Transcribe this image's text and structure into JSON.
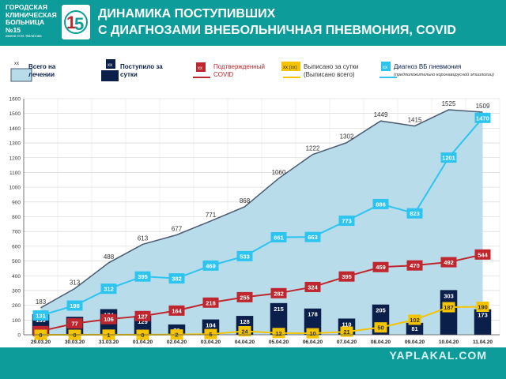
{
  "header": {
    "hospital_lines": [
      "ГОРОДСКАЯ",
      "КЛИНИЧЕСКАЯ",
      "БОЛЬНИЦА №15"
    ],
    "hospital_sub": "имени О.М. Филатова",
    "title_line1": "ДИНАМИКА ПОСТУПИВШИХ",
    "title_line2": "С ДИАГНОЗАМИ ВНЕБОЛЬНИЧНАЯ ПНЕВМОНИЯ, COVID"
  },
  "legend": {
    "total": {
      "swatch": "xx",
      "label": "Всего на лечении"
    },
    "admitted": {
      "swatch": "xx",
      "label": "Поступило за сутки"
    },
    "covid": {
      "swatch": "xx",
      "label": "Подтвержденный COVID"
    },
    "discharged": {
      "swatch": "xx (xx)",
      "label": "Выписано за сутки (Выписано всего)"
    },
    "pneumonia": {
      "swatch": "xx",
      "label": "Диагноз ВБ пневмония",
      "note": "(предположительно коронавирусной этиологии)"
    }
  },
  "watermark": "YAPLAKAL.COM",
  "colors": {
    "teal": "#0e9c9b",
    "area_fill": "#b9dcea",
    "area_line": "#4a5a70",
    "navy": "#0a1f4a",
    "red": "#c0262d",
    "yellow": "#f5c400",
    "light_blue": "#2ec4f0"
  },
  "chart_data": {
    "type": "combo",
    "x": [
      "29.03.20",
      "30.03.20",
      "31.03.20",
      "01.04.20",
      "02.04.20",
      "03.04.20",
      "04.04.20",
      "05.04.20",
      "06.04.20",
      "07.04.20",
      "08.04.20",
      "09.04.20",
      "10.04.20",
      "11.04.20"
    ],
    "ylim": [
      0,
      1600
    ],
    "yticks": [
      0,
      100,
      200,
      300,
      400,
      500,
      600,
      700,
      800,
      900,
      1000,
      1100,
      1200,
      1300,
      1400,
      1500,
      1600
    ],
    "grid": true,
    "series": [
      {
        "name": "Всего на лечении",
        "kind": "area",
        "values": [
          183,
          313,
          488,
          613,
          677,
          771,
          868,
          1060,
          1222,
          1302,
          1449,
          1415,
          1525,
          1509
        ]
      },
      {
        "name": "Поступило за сутки",
        "kind": "bar",
        "values": [
          139,
          122,
          174,
          129,
          70,
          104,
          128,
          215,
          178,
          110,
          205,
          81,
          303,
          173
        ]
      },
      {
        "name": "Подтвержденный COVID",
        "kind": "line",
        "values": [
          25,
          77,
          106,
          127,
          164,
          218,
          255,
          282,
          324,
          395,
          459,
          470,
          492,
          544
        ]
      },
      {
        "name": "Выписано за сутки",
        "kind": "line",
        "values": [
          0,
          0,
          1,
          0,
          2,
          5,
          24,
          12,
          10,
          21,
          50,
          102,
          187,
          190
        ]
      },
      {
        "name": "Диагноз ВБ пневмония",
        "kind": "line",
        "values": [
          131,
          198,
          312,
          395,
          382,
          469,
          533,
          661,
          663,
          773,
          886,
          823,
          1201,
          1470
        ]
      }
    ]
  }
}
